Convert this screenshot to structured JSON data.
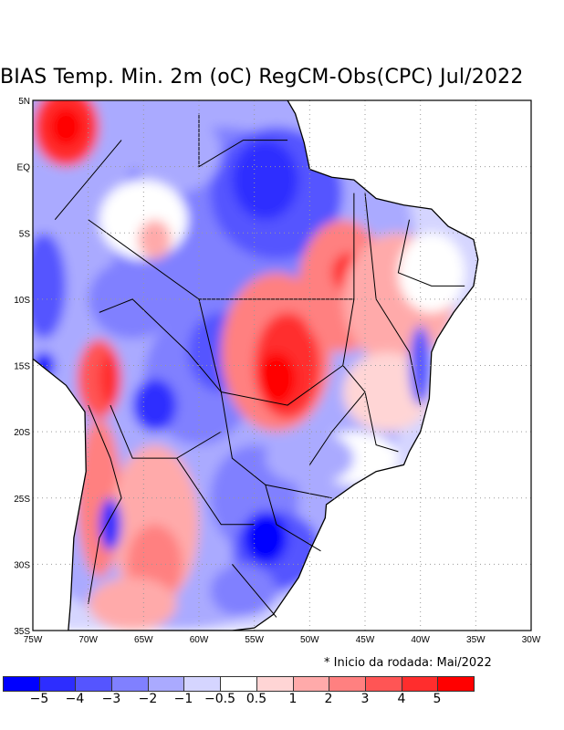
{
  "title": "BIAS Temp. Min. 2m (oC) RegCM-Obs(CPC) Jul/2022",
  "note": "* Inicio da rodada: Mai/2022",
  "lat_labels": [
    "5N",
    "EQ",
    "5S",
    "10S",
    "15S",
    "20S",
    "25S",
    "30S",
    "35S"
  ],
  "lon_labels": [
    "75W",
    "70W",
    "65W",
    "60W",
    "55W",
    "50W",
    "45W",
    "40W",
    "35W",
    "30W"
  ],
  "colorbar": {
    "colors": [
      "#0000ff",
      "#2d2dff",
      "#5555ff",
      "#8080ff",
      "#aaaaff",
      "#d5d5ff",
      "#ffffff",
      "#ffd5d5",
      "#ffaaaa",
      "#ff8080",
      "#ff5555",
      "#ff2d2d",
      "#ff0000"
    ],
    "labels": [
      "−5",
      "−4",
      "−3",
      "−2",
      "−1",
      "−0.5",
      "0.5",
      "1",
      "2",
      "3",
      "4",
      "5"
    ]
  }
}
